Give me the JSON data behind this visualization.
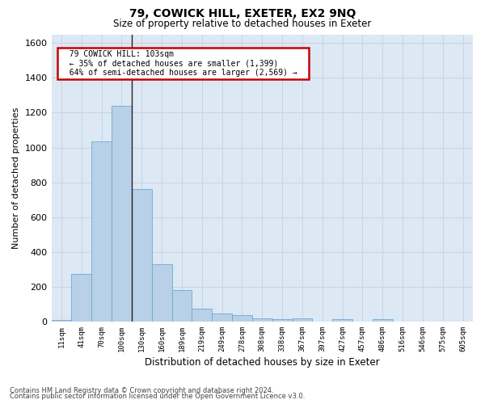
{
  "title1": "79, COWICK HILL, EXETER, EX2 9NQ",
  "title2": "Size of property relative to detached houses in Exeter",
  "xlabel": "Distribution of detached houses by size in Exeter",
  "ylabel": "Number of detached properties",
  "footer1": "Contains HM Land Registry data © Crown copyright and database right 2024.",
  "footer2": "Contains public sector information licensed under the Open Government Licence v3.0.",
  "annotation_title": "79 COWICK HILL: 103sqm",
  "annotation_line2": "← 35% of detached houses are smaller (1,399)",
  "annotation_line3": "64% of semi-detached houses are larger (2,569) →",
  "bar_color": "#b8d0e8",
  "bar_edge_color": "#6aaad4",
  "annotation_box_color": "#cc0000",
  "grid_color": "#c8d4e4",
  "bg_color": "#dce8f4",
  "categories": [
    "11sqm",
    "41sqm",
    "70sqm",
    "100sqm",
    "130sqm",
    "160sqm",
    "189sqm",
    "219sqm",
    "249sqm",
    "278sqm",
    "308sqm",
    "338sqm",
    "367sqm",
    "397sqm",
    "427sqm",
    "457sqm",
    "486sqm",
    "516sqm",
    "546sqm",
    "575sqm",
    "605sqm"
  ],
  "values": [
    8,
    275,
    1035,
    1240,
    760,
    330,
    180,
    75,
    45,
    35,
    20,
    12,
    18,
    0,
    12,
    0,
    12,
    0,
    0,
    0,
    0
  ],
  "vline_index": 3,
  "ylim": [
    0,
    1650
  ],
  "yticks": [
    0,
    200,
    400,
    600,
    800,
    1000,
    1200,
    1400,
    1600
  ]
}
